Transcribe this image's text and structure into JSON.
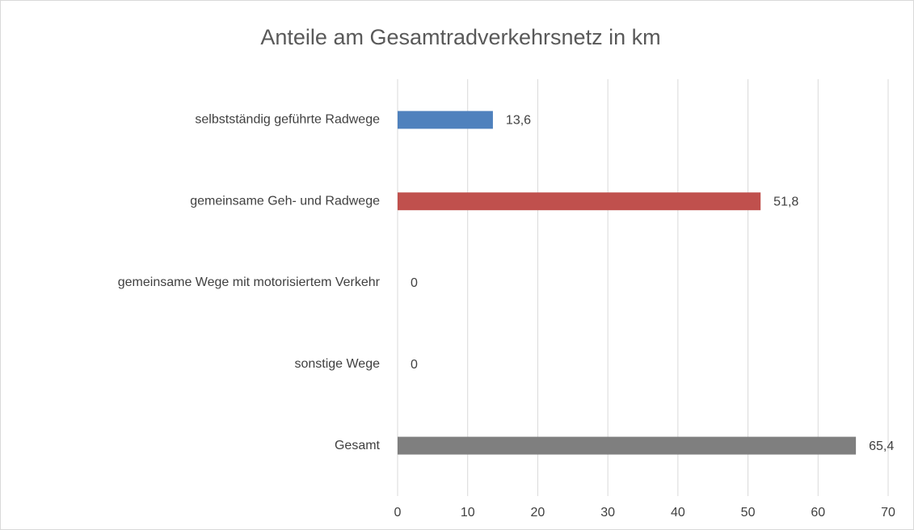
{
  "chart_data": {
    "type": "bar",
    "orientation": "horizontal",
    "title": "Anteile am Gesamtradverkehrsnetz  in km",
    "categories": [
      "selbstständig geführte Radwege",
      "gemeinsame Geh- und Radwege",
      "gemeinsame Wege mit motorisiertem Verkehr",
      "sonstige Wege",
      "Gesamt"
    ],
    "values": [
      13.6,
      51.8,
      0,
      0,
      65.4
    ],
    "value_labels": [
      "13,6",
      "51,8",
      "0",
      "0",
      "65,4"
    ],
    "colors": [
      "#4f81bd",
      "#c0504d",
      "#9bbb59",
      "#8064a2",
      "#7f7f7f"
    ],
    "xlim": [
      0,
      70
    ],
    "xticks": [
      0,
      10,
      20,
      30,
      40,
      50,
      60,
      70
    ],
    "grid": true
  }
}
